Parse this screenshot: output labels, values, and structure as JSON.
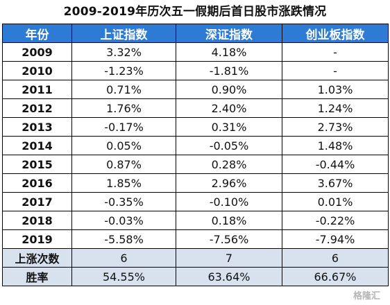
{
  "title": "2009-2019年历次五一假期后首日股市涨跌情况",
  "headers": [
    "年份",
    "上证指数",
    "深证指数",
    "创业板指数"
  ],
  "rows": [
    [
      "2009",
      "3.32%",
      "4.18%",
      "-"
    ],
    [
      "2010",
      "-1.23%",
      "-1.81%",
      "-"
    ],
    [
      "2011",
      "0.71%",
      "0.90%",
      "1.03%"
    ],
    [
      "2012",
      "1.76%",
      "2.40%",
      "1.24%"
    ],
    [
      "2013",
      "-0.17%",
      "0.31%",
      "2.73%"
    ],
    [
      "2014",
      "0.05%",
      "-0.05%",
      "1.48%"
    ],
    [
      "2015",
      "0.87%",
      "0.28%",
      "-0.44%"
    ],
    [
      "2016",
      "1.85%",
      "2.96%",
      "3.67%"
    ],
    [
      "2017",
      "-0.35%",
      "-0.10%",
      "0.01%"
    ],
    [
      "2018",
      "-0.03%",
      "0.18%",
      "-0.22%"
    ],
    [
      "2019",
      "-5.58%",
      "-7.56%",
      "-7.94%"
    ]
  ],
  "summary": [
    [
      "上涨次数",
      "6",
      "7",
      "6"
    ],
    [
      "胜率",
      "54.55%",
      "63.64%",
      "66.67%"
    ]
  ],
  "watermark": "格隆汇",
  "colors": {
    "header_bg": "#2e7bd6",
    "summary_bg": "#d8e2ef"
  }
}
